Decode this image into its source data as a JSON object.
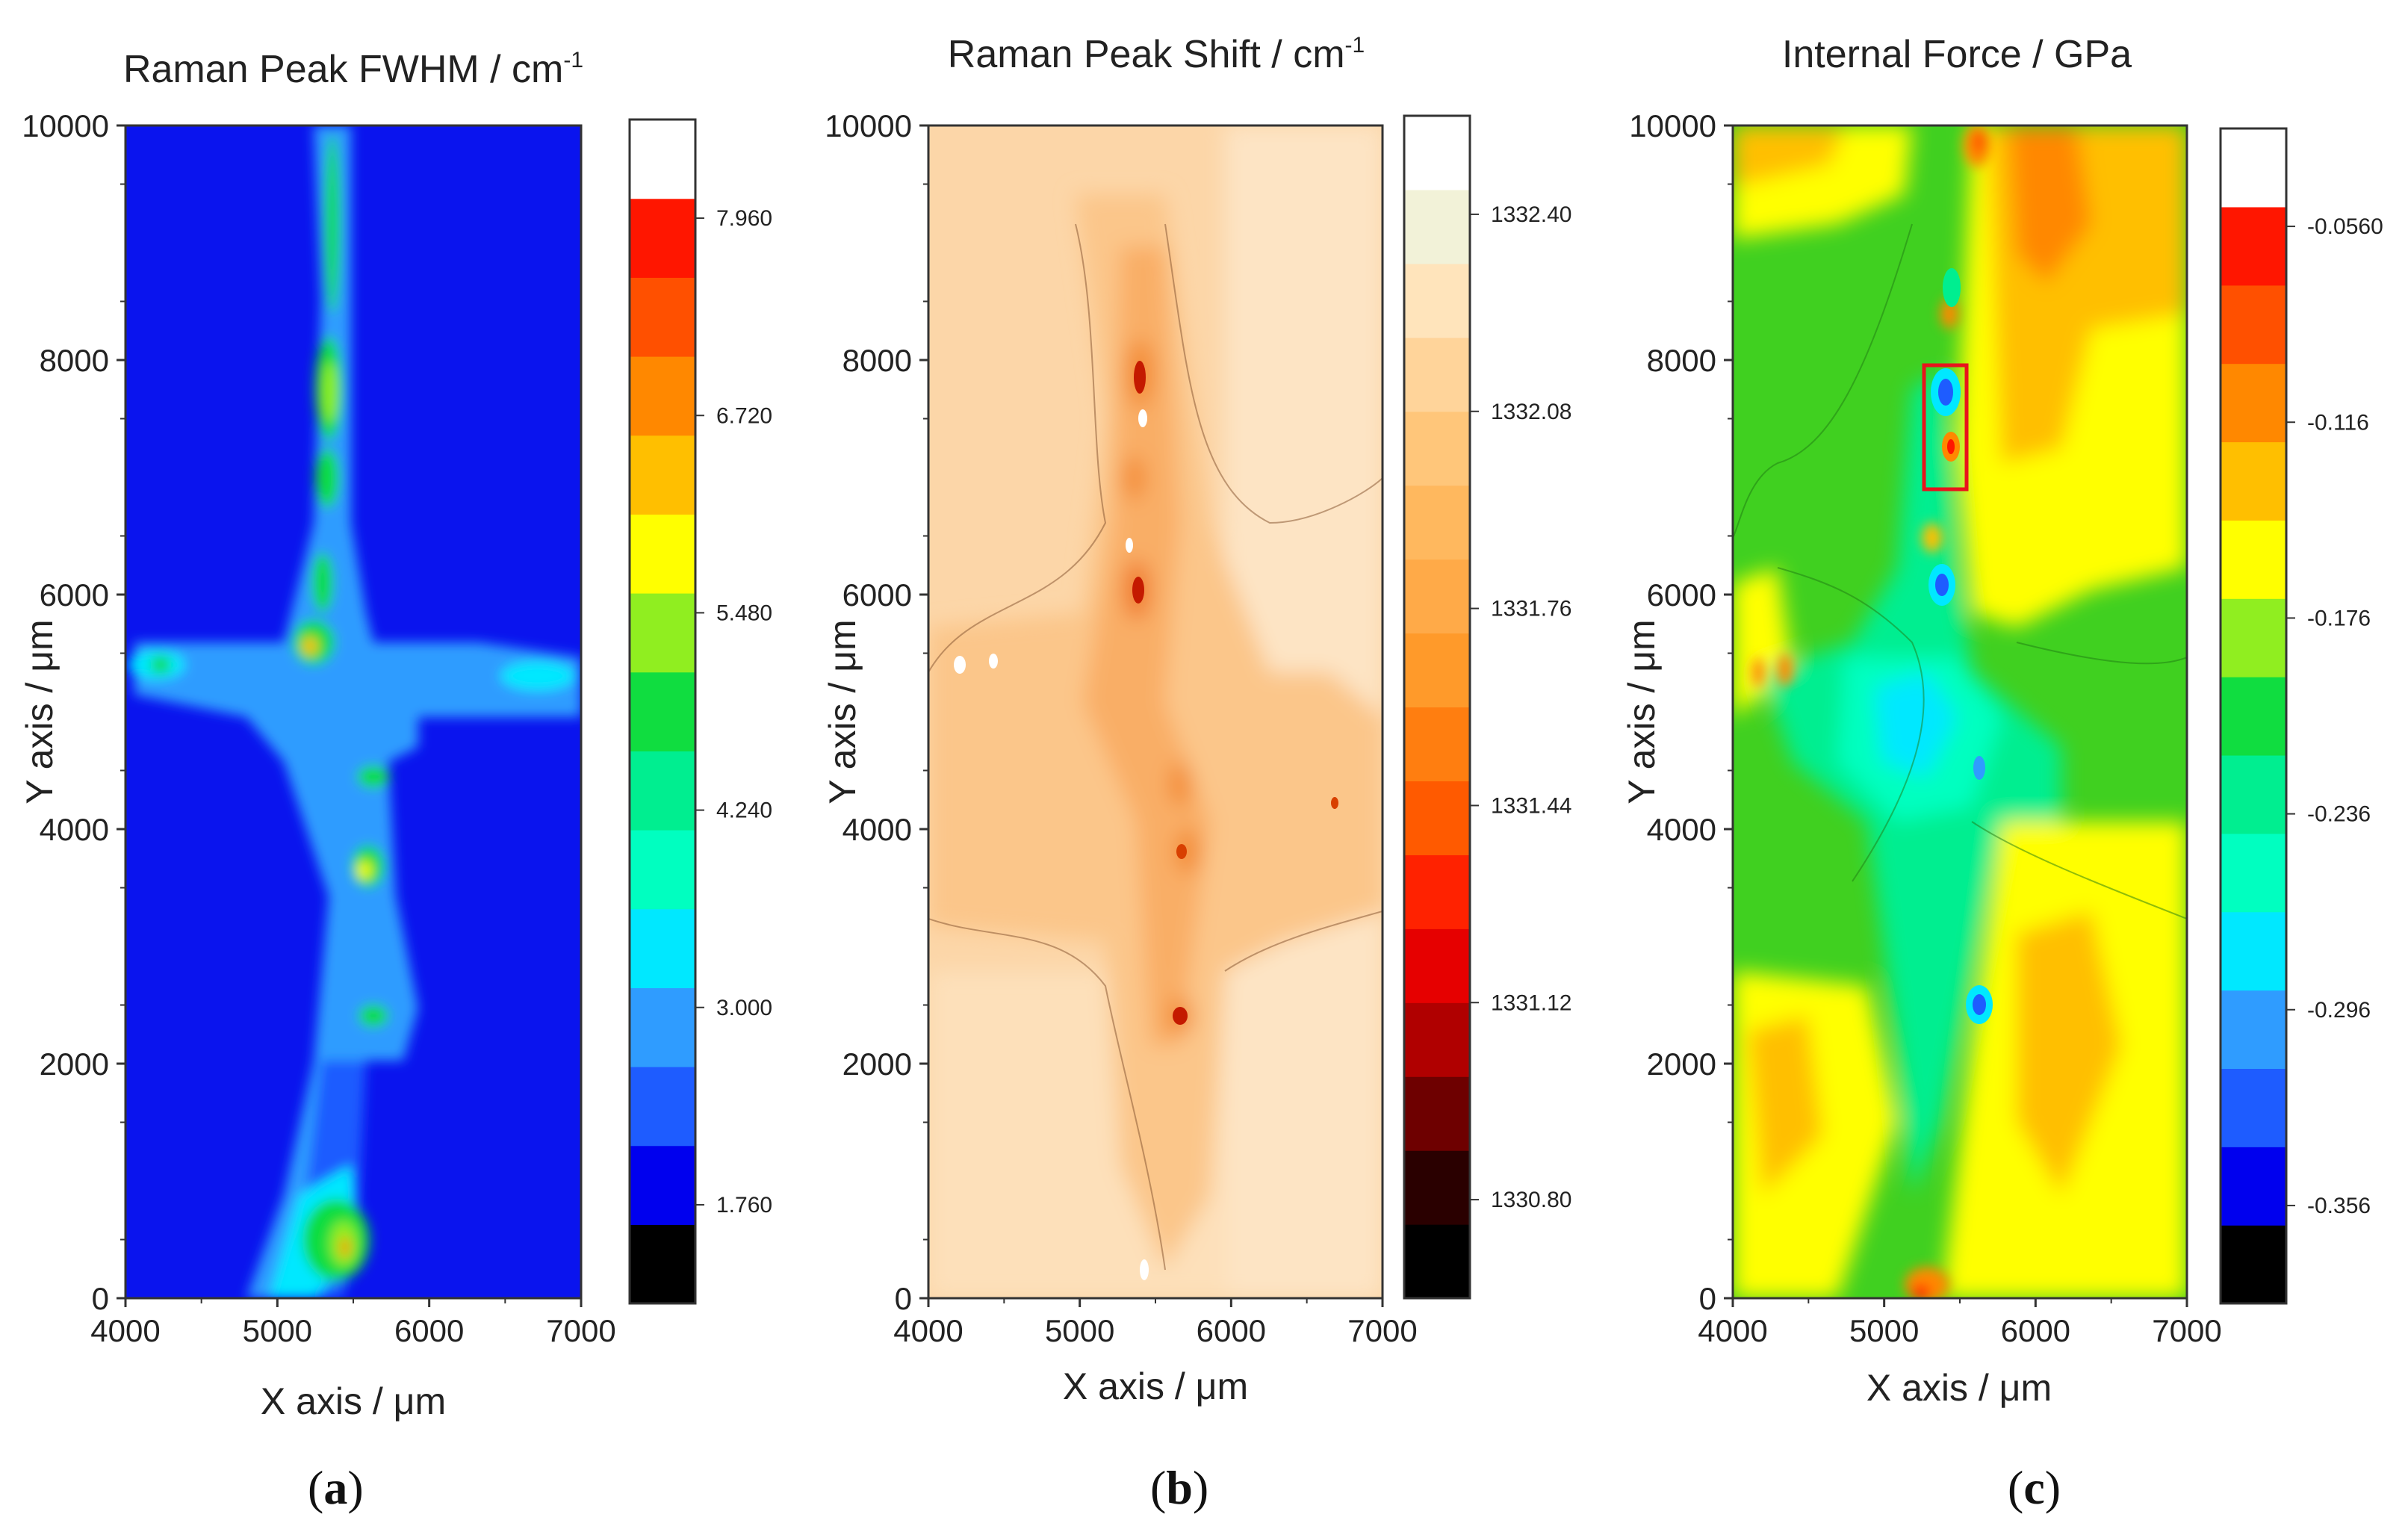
{
  "chart_data": [
    {
      "type": "heatmap",
      "panel_label": "a",
      "title": "Raman Peak FWHM / cm",
      "title_sup": "-1",
      "xlabel": "X axis / μm",
      "ylabel": "Y axis / μm",
      "xlim": [
        4000,
        7000
      ],
      "ylim": [
        0,
        10000
      ],
      "x_ticks": [
        "4000",
        "5000",
        "6000",
        "7000"
      ],
      "y_ticks": [
        "0",
        "2000",
        "4000",
        "6000",
        "8000",
        "10000"
      ],
      "colorbar": {
        "range": [
          1.14,
          8.58
        ],
        "tick_labels": [
          "1.760",
          "3.000",
          "4.240",
          "5.480",
          "6.720",
          "7.960"
        ],
        "colors": [
          "#000000",
          "#0000ee",
          "#1e5cff",
          "#2f9cff",
          "#00e8ff",
          "#00ffc0",
          "#00ee90",
          "#10dd40",
          "#90ee20",
          "#ffff00",
          "#ffbf00",
          "#ff8800",
          "#ff5000",
          "#ff1600",
          "#ffffff"
        ]
      },
      "background_color": "#0a14ee"
    },
    {
      "type": "heatmap",
      "panel_label": "b",
      "title": "Raman Peak Shift / cm",
      "title_sup": "-1",
      "xlabel": "X axis / μm",
      "ylabel": "Y axis / μm",
      "xlim": [
        4000,
        7000
      ],
      "ylim": [
        0,
        10000
      ],
      "x_ticks": [
        "4000",
        "5000",
        "6000",
        "7000"
      ],
      "y_ticks": [
        "0",
        "2000",
        "4000",
        "6000",
        "8000",
        "10000"
      ],
      "colorbar": {
        "range": [
          1330.64,
          1332.56
        ],
        "tick_labels": [
          "1330.80",
          "1331.12",
          "1331.44",
          "1331.76",
          "1332.08",
          "1332.40"
        ],
        "colors": [
          "#000000",
          "#2a0000",
          "#6e0000",
          "#b00000",
          "#e60000",
          "#ff2200",
          "#ff5a00",
          "#ff7e10",
          "#ff9a2a",
          "#ffaa48",
          "#ffb85e",
          "#ffc67a",
          "#ffd49a",
          "#ffe4bb",
          "#f2f2d8",
          "#ffffff"
        ]
      },
      "background_color": "#fcd6a8"
    },
    {
      "type": "heatmap",
      "panel_label": "c",
      "title": "Internal Force / GPa",
      "xlabel": "X axis / μm",
      "ylabel": "Y axis / μm",
      "xlim": [
        4000,
        7000
      ],
      "ylim": [
        0,
        10000
      ],
      "x_ticks": [
        "4000",
        "5000",
        "6000",
        "7000"
      ],
      "y_ticks": [
        "0",
        "2000",
        "4000",
        "6000",
        "8000",
        "10000"
      ],
      "colorbar": {
        "range": [
          -0.386,
          -0.026
        ],
        "tick_labels": [
          "-0.356",
          "-0.296",
          "-0.236",
          "-0.176",
          "-0.116",
          "-0.0560"
        ],
        "colors": [
          "#000000",
          "#0000ee",
          "#1e5cff",
          "#2f9cff",
          "#00e8ff",
          "#00ffc0",
          "#00ee90",
          "#10dd40",
          "#90ee20",
          "#ffff00",
          "#ffbf00",
          "#ff8800",
          "#ff5000",
          "#ff1600",
          "#ffffff"
        ]
      },
      "background_color": "#40d020",
      "annotation": "red rectangle around 5250-5550 μm x, 6900-7900 μm y"
    }
  ]
}
